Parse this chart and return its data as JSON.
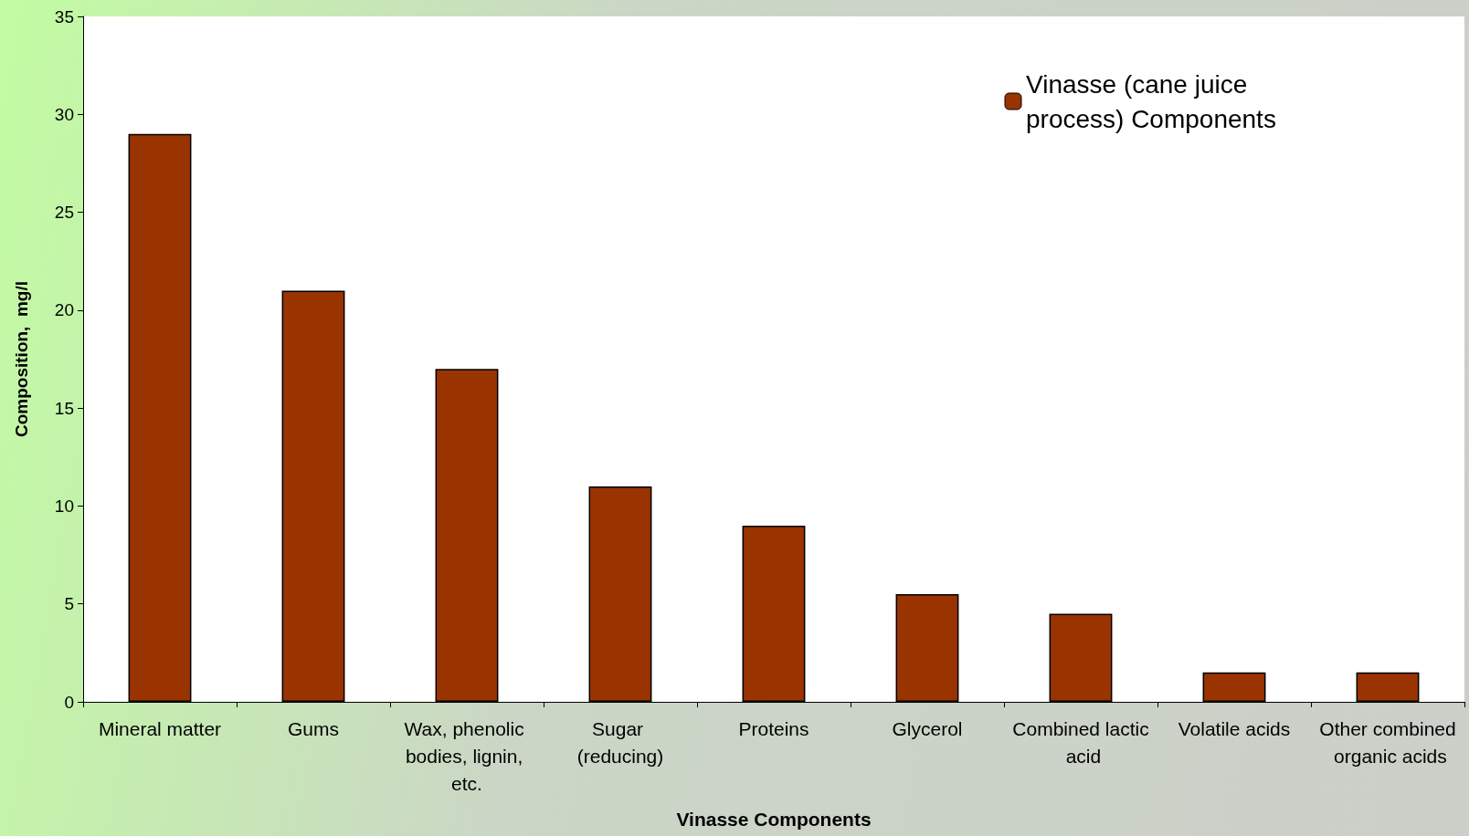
{
  "chart_data": {
    "type": "bar",
    "xlabel": "Vinasse Components",
    "ylabel": "Composition,  mg/l",
    "categories": [
      "Mineral matter",
      "Gums",
      "Wax, phenolic bodies, lignin, etc.",
      "Sugar (reducing)",
      "Proteins",
      "Glycerol",
      "Combined lactic acid",
      "Volatile acids",
      "Other combined organic acids"
    ],
    "series": [
      {
        "name": "Vinasse (cane juice process) Components",
        "color": "#993300",
        "values": [
          29,
          21,
          17,
          11,
          9,
          5.5,
          4.5,
          1.5,
          1.5
        ]
      }
    ],
    "ylim": [
      0,
      35
    ],
    "yticks": [
      0,
      5,
      10,
      15,
      20,
      25,
      30,
      35
    ],
    "grid": false,
    "legend": "top right"
  }
}
